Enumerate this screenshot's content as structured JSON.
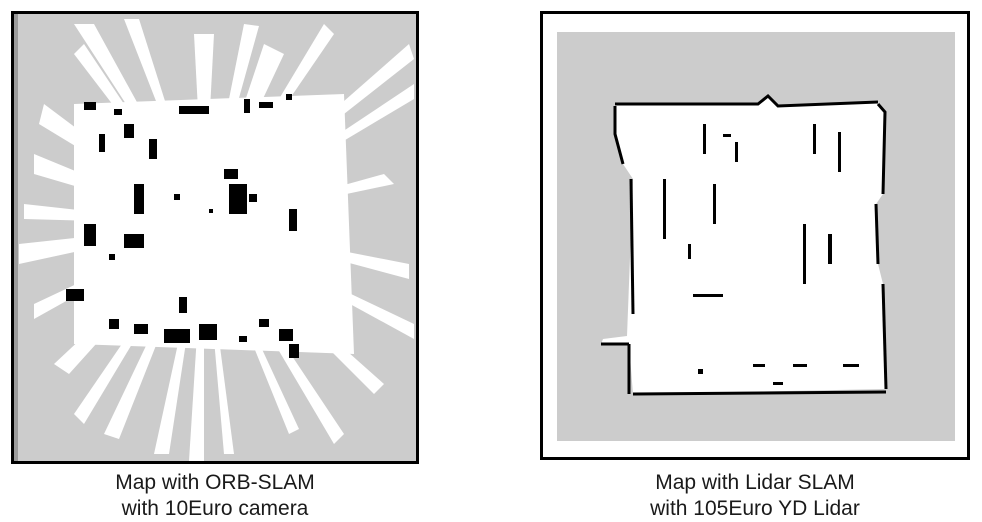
{
  "colors": {
    "unknown": "#cccccc",
    "free": "#ffffff",
    "occupied": "#000000",
    "frame": "#000000"
  },
  "left_panel": {
    "caption_line1": "Map with ORB-SLAM",
    "caption_line2": "with 10Euro camera"
  },
  "right_panel": {
    "caption_line1": "Map with Lidar SLAM",
    "caption_line2": "with 105Euro YD Lidar"
  }
}
